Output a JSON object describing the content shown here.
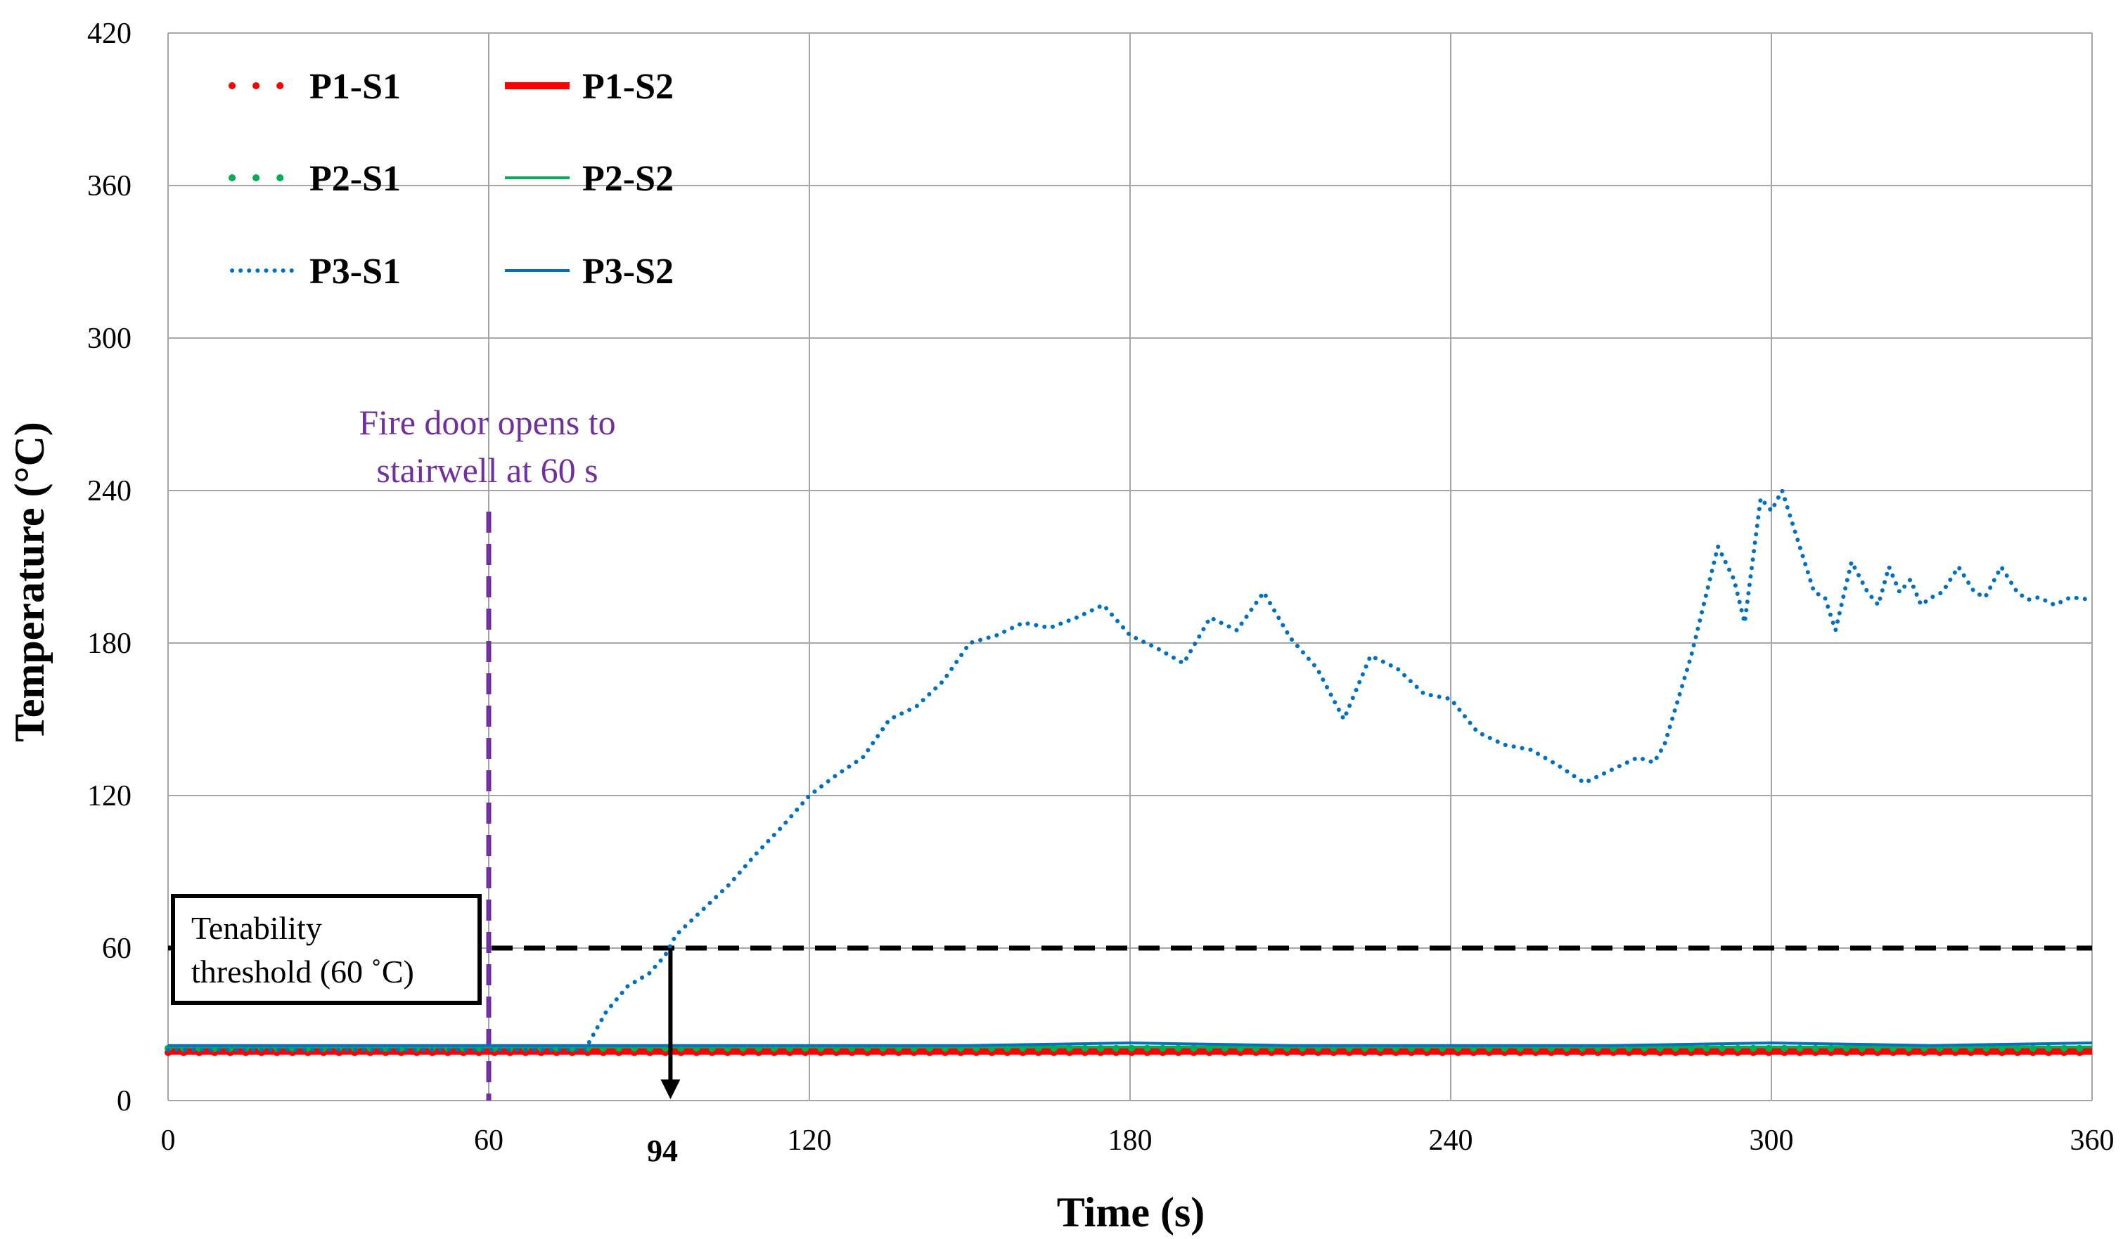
{
  "chart_data": {
    "type": "line",
    "xlabel": "Time (s)",
    "ylabel": "Temperature (°C)",
    "xlim": [
      0,
      360
    ],
    "ylim": [
      0,
      420
    ],
    "x_ticks": [
      0,
      60,
      120,
      180,
      240,
      300,
      360
    ],
    "y_ticks": [
      0,
      60,
      120,
      180,
      240,
      300,
      360,
      420
    ],
    "grid": true,
    "legend_position": "top-left",
    "series": [
      {
        "name": "P1-S1",
        "color": "#ff0000",
        "style": "dotted-thick",
        "x": [
          0,
          30,
          60,
          90,
          120,
          150,
          180,
          210,
          240,
          270,
          300,
          330,
          360
        ],
        "y": [
          20,
          20,
          20,
          20,
          20,
          20,
          20,
          20,
          20,
          20,
          20,
          20,
          20
        ]
      },
      {
        "name": "P1-S2",
        "color": "#ff0000",
        "style": "solid-thick",
        "x": [
          0,
          30,
          60,
          90,
          120,
          150,
          180,
          210,
          240,
          270,
          300,
          330,
          360
        ],
        "y": [
          20,
          20,
          20,
          20,
          20,
          20,
          20,
          20,
          20,
          20,
          20,
          20,
          20
        ]
      },
      {
        "name": "P2-S1",
        "color": "#00b050",
        "style": "dotted-thick",
        "x": [
          0,
          30,
          60,
          90,
          120,
          150,
          180,
          210,
          240,
          270,
          300,
          330,
          360
        ],
        "y": [
          20,
          20,
          20,
          20,
          20,
          20,
          20,
          20,
          20,
          20,
          20,
          20,
          20
        ]
      },
      {
        "name": "P2-S2",
        "color": "#00b050",
        "style": "solid",
        "x": [
          0,
          30,
          60,
          90,
          120,
          150,
          180,
          210,
          240,
          270,
          300,
          330,
          360
        ],
        "y": [
          20,
          20,
          20,
          20,
          20,
          20,
          20,
          20,
          20,
          20,
          20,
          20,
          20
        ]
      },
      {
        "name": "P3-S1",
        "color": "#0070c0",
        "style": "dotted",
        "x": [
          0,
          30,
          60,
          70,
          75,
          78,
          82,
          86,
          90,
          93,
          95,
          100,
          105,
          110,
          115,
          120,
          125,
          130,
          135,
          140,
          145,
          150,
          155,
          160,
          165,
          170,
          175,
          180,
          185,
          190,
          195,
          200,
          205,
          210,
          215,
          220,
          225,
          230,
          235,
          240,
          245,
          250,
          255,
          260,
          265,
          270,
          275,
          278,
          280,
          285,
          290,
          293,
          295,
          298,
          300,
          302,
          305,
          308,
          310,
          312,
          315,
          318,
          320,
          322,
          324,
          326,
          328,
          330,
          332,
          335,
          338,
          340,
          343,
          346,
          348,
          350,
          353,
          356,
          360
        ],
        "y": [
          20,
          20,
          20,
          20,
          20,
          20,
          35,
          45,
          50,
          57,
          65,
          75,
          85,
          97,
          108,
          120,
          128,
          135,
          150,
          155,
          165,
          180,
          183,
          188,
          186,
          190,
          195,
          183,
          178,
          172,
          190,
          185,
          200,
          182,
          170,
          150,
          175,
          170,
          160,
          158,
          145,
          140,
          138,
          132,
          125,
          130,
          135,
          133,
          140,
          175,
          218,
          205,
          188,
          237,
          232,
          240,
          220,
          200,
          198,
          185,
          212,
          200,
          195,
          210,
          200,
          205,
          195,
          198,
          200,
          210,
          200,
          198,
          210,
          200,
          197,
          198,
          195,
          198,
          197
        ]
      },
      {
        "name": "P3-S2",
        "color": "#0070c0",
        "style": "solid",
        "x": [
          0,
          30,
          60,
          90,
          120,
          150,
          180,
          210,
          240,
          270,
          300,
          330,
          360
        ],
        "y": [
          20,
          20,
          20,
          20,
          20,
          20,
          21,
          20,
          20,
          20,
          21,
          20,
          21
        ]
      }
    ],
    "reference_lines": [
      {
        "axis": "y",
        "value": 60,
        "style": "dashed",
        "color": "#000000"
      },
      {
        "axis": "x",
        "value": 60,
        "style": "dashed",
        "color": "#7030a0"
      }
    ],
    "annotations": {
      "fire_door": [
        "Fire door opens to",
        "stairwell at 60 s"
      ],
      "tenability": [
        "Tenability",
        "threshold (60 ˚C)"
      ],
      "marker": {
        "x": 94,
        "label": "94",
        "y_from": 60,
        "y_to": 0
      }
    }
  }
}
